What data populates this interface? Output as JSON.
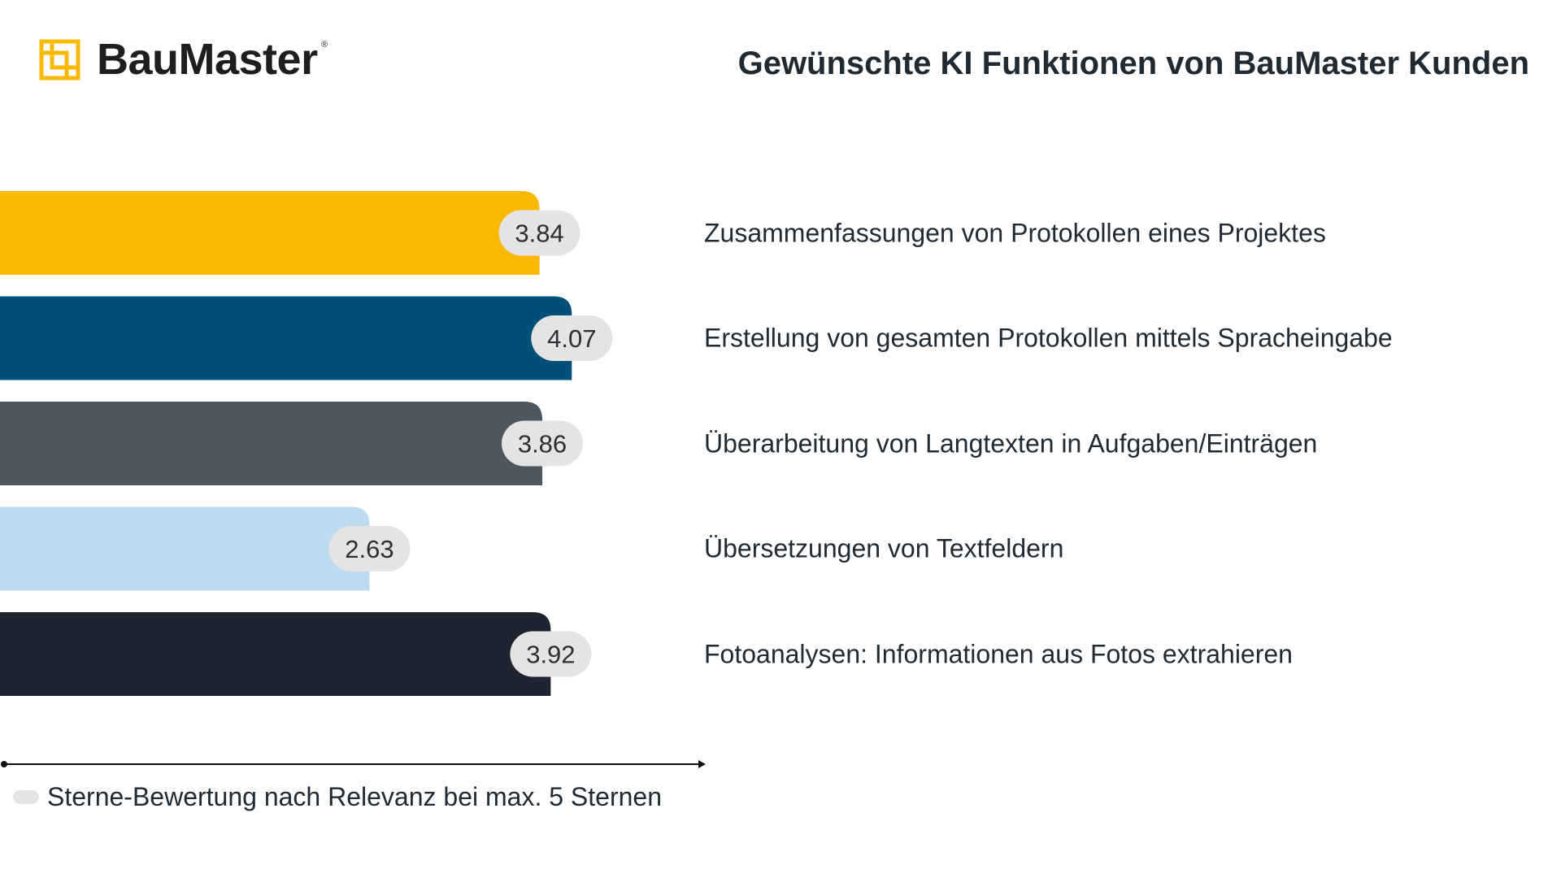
{
  "brand": {
    "name": "BauMaster",
    "registered_mark": "®",
    "logo_icon": "baumaster-logo-icon",
    "logo_color": "#FBB800"
  },
  "chart_data": {
    "type": "bar",
    "orientation": "horizontal",
    "title": "Gewünschte KI Funktionen von BauMaster Kunden",
    "categories": [
      "Zusammenfassungen von Protokollen eines Projektes",
      "Erstellung von gesamten Protokollen mittels Spracheingabe",
      "Überarbeitung von Langtexten in Aufgaben/Einträgen",
      "Übersetzungen von Textfeldern",
      "Fotoanalysen: Informationen aus Fotos extrahieren"
    ],
    "values": [
      3.84,
      4.07,
      3.86,
      2.63,
      3.92
    ],
    "value_labels": [
      "3.84",
      "4.07",
      "3.86",
      "2.63",
      "3.92"
    ],
    "colors": [
      "#FBB800",
      "#004F78",
      "#4C5760",
      "#BCDBEE",
      "#1E2430"
    ],
    "label_pill_color": "#E4E4E4",
    "xlim": [
      0,
      5
    ],
    "grid": false,
    "legend": {
      "text": "Sterne-Bewertung nach Relevanz bei max. 5 Sternen",
      "placement": "bottom-left"
    }
  }
}
